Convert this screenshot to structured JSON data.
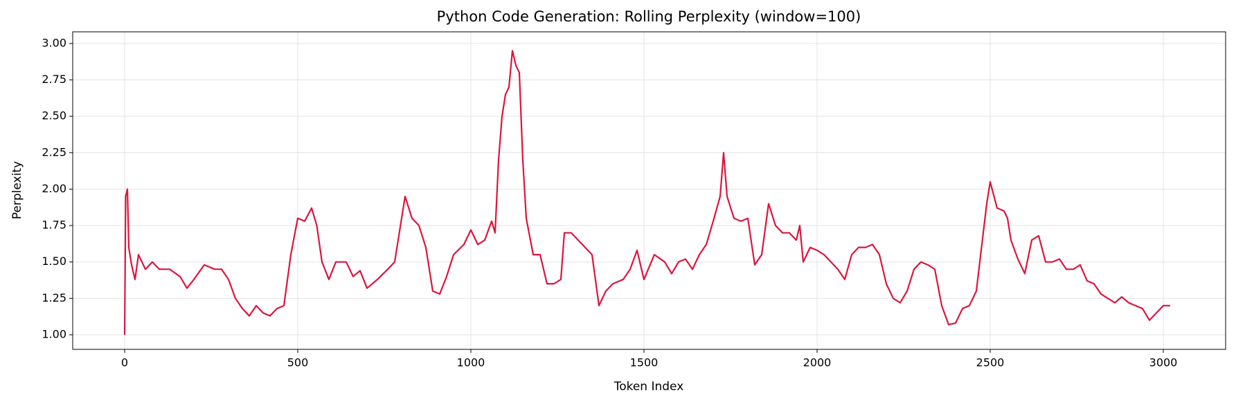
{
  "chart_data": {
    "type": "line",
    "title": "Python Code Generation: Rolling Perplexity (window=100)",
    "x_label": "Token Index",
    "y_label": "Perplexity",
    "x": [
      0,
      3,
      8,
      12,
      20,
      30,
      40,
      60,
      80,
      100,
      130,
      160,
      180,
      200,
      230,
      260,
      280,
      300,
      320,
      340,
      360,
      380,
      400,
      420,
      440,
      460,
      480,
      500,
      520,
      540,
      555,
      570,
      590,
      610,
      640,
      660,
      680,
      700,
      730,
      760,
      780,
      800,
      810,
      830,
      850,
      870,
      890,
      910,
      930,
      950,
      980,
      1000,
      1020,
      1040,
      1060,
      1070,
      1080,
      1090,
      1100,
      1110,
      1120,
      1130,
      1140,
      1150,
      1160,
      1180,
      1200,
      1220,
      1240,
      1260,
      1270,
      1290,
      1310,
      1330,
      1350,
      1370,
      1390,
      1410,
      1440,
      1460,
      1480,
      1500,
      1530,
      1560,
      1580,
      1600,
      1620,
      1640,
      1660,
      1680,
      1700,
      1720,
      1730,
      1740,
      1760,
      1780,
      1800,
      1820,
      1840,
      1860,
      1880,
      1900,
      1920,
      1940,
      1950,
      1960,
      1980,
      2000,
      2020,
      2040,
      2060,
      2080,
      2100,
      2120,
      2140,
      2160,
      2180,
      2200,
      2220,
      2240,
      2260,
      2280,
      2300,
      2320,
      2340,
      2360,
      2380,
      2400,
      2420,
      2440,
      2460,
      2480,
      2490,
      2500,
      2520,
      2540,
      2550,
      2560,
      2580,
      2600,
      2620,
      2640,
      2660,
      2680,
      2700,
      2720,
      2740,
      2760,
      2780,
      2800,
      2820,
      2840,
      2860,
      2880,
      2900,
      2920,
      2940,
      2960,
      2980,
      3000,
      3020
    ],
    "series": [
      {
        "name": "Perplexity",
        "color": "#dc143c",
        "values": [
          1.0,
          1.95,
          2.0,
          1.6,
          1.48,
          1.38,
          1.55,
          1.45,
          1.5,
          1.45,
          1.45,
          1.4,
          1.32,
          1.38,
          1.48,
          1.45,
          1.45,
          1.38,
          1.25,
          1.18,
          1.13,
          1.2,
          1.15,
          1.13,
          1.18,
          1.2,
          1.55,
          1.8,
          1.78,
          1.87,
          1.75,
          1.5,
          1.38,
          1.5,
          1.5,
          1.4,
          1.44,
          1.32,
          1.38,
          1.45,
          1.5,
          1.8,
          1.95,
          1.8,
          1.75,
          1.6,
          1.3,
          1.28,
          1.4,
          1.55,
          1.62,
          1.72,
          1.62,
          1.65,
          1.78,
          1.7,
          2.2,
          2.5,
          2.65,
          2.7,
          2.95,
          2.85,
          2.8,
          2.2,
          1.8,
          1.55,
          1.55,
          1.35,
          1.35,
          1.38,
          1.7,
          1.7,
          1.65,
          1.6,
          1.55,
          1.2,
          1.3,
          1.35,
          1.38,
          1.45,
          1.58,
          1.38,
          1.55,
          1.5,
          1.42,
          1.5,
          1.52,
          1.45,
          1.55,
          1.62,
          1.78,
          1.95,
          2.25,
          1.95,
          1.8,
          1.78,
          1.8,
          1.48,
          1.55,
          1.9,
          1.75,
          1.7,
          1.7,
          1.65,
          1.75,
          1.5,
          1.6,
          1.58,
          1.55,
          1.5,
          1.45,
          1.38,
          1.55,
          1.6,
          1.6,
          1.62,
          1.55,
          1.35,
          1.25,
          1.22,
          1.3,
          1.45,
          1.5,
          1.48,
          1.45,
          1.2,
          1.07,
          1.08,
          1.18,
          1.2,
          1.3,
          1.7,
          1.9,
          2.05,
          1.87,
          1.85,
          1.8,
          1.65,
          1.52,
          1.42,
          1.65,
          1.68,
          1.5,
          1.5,
          1.52,
          1.45,
          1.45,
          1.48,
          1.37,
          1.35,
          1.28,
          1.25,
          1.22,
          1.26,
          1.22,
          1.2,
          1.18,
          1.1,
          1.15,
          1.2,
          1.2
        ]
      }
    ],
    "xlim": [
      -150,
      3180
    ],
    "xticks": [
      0,
      500,
      1000,
      1500,
      2000,
      2500,
      3000
    ],
    "ylim": [
      0.9,
      3.08
    ],
    "yticks": [
      {
        "value": 1.0,
        "label": "1.00"
      },
      {
        "value": 1.25,
        "label": "1.25"
      },
      {
        "value": 1.5,
        "label": "1.50"
      },
      {
        "value": 1.75,
        "label": "1.75"
      },
      {
        "value": 2.0,
        "label": "2.00"
      },
      {
        "value": 2.25,
        "label": "2.25"
      },
      {
        "value": 2.5,
        "label": "2.50"
      },
      {
        "value": 2.75,
        "label": "2.75"
      },
      {
        "value": 3.0,
        "label": "3.00"
      }
    ],
    "grid": true
  }
}
